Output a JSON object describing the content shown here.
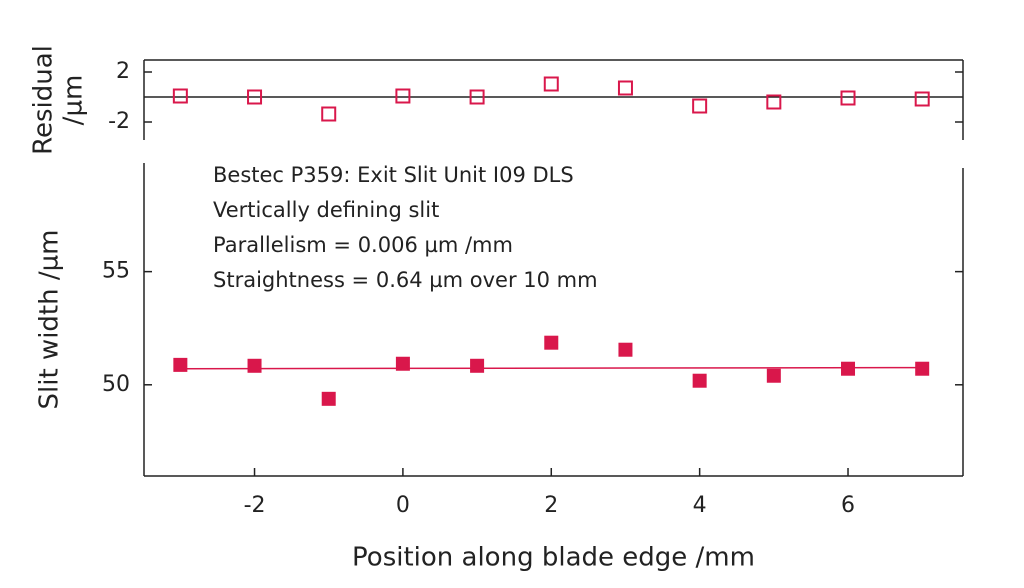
{
  "chart_data": [
    {
      "type": "scatter",
      "ylabel": [
        "Residual",
        "/µm"
      ],
      "x": [
        -3,
        -2,
        -1,
        0,
        1,
        2,
        3,
        4,
        5,
        6,
        7
      ],
      "values": [
        0.08,
        0,
        -1.36,
        0.08,
        0,
        1.04,
        0.72,
        -0.72,
        -0.4,
        -0.08,
        -0.16
      ],
      "color": "#d9174b",
      "marker": "open-square",
      "zero_line": true,
      "xlim": [
        -3.49,
        7.55
      ],
      "ylim": [
        -3.44,
        2.96
      ],
      "yticks": [
        -2,
        2
      ]
    },
    {
      "type": "scatter",
      "annotations": [
        "Bestec P359: Exit Slit Unit I09 DLS",
        "Vertically defining slit",
        "Parallelism = 0.006 µm /mm",
        "Straightness = 0.64 µm over 10 mm"
      ],
      "xlabel": "Position along blade edge /mm",
      "ylabel": "Slit width /µm",
      "x": [
        -3,
        -2,
        -1,
        0,
        1,
        2,
        3,
        4,
        5,
        6,
        7
      ],
      "values": [
        50.88,
        50.84,
        49.38,
        50.93,
        50.84,
        51.86,
        51.55,
        50.18,
        50.4,
        50.71,
        50.71
      ],
      "color": "#d9174b",
      "marker": "filled-square",
      "fit": {
        "x": [
          -3,
          7
        ],
        "values": [
          50.71,
          50.76
        ]
      },
      "xlim": [
        -3.49,
        7.55
      ],
      "ylim": [
        45.97,
        59.8
      ],
      "xticks": [
        -2,
        0,
        2,
        4,
        6
      ],
      "yticks": [
        50,
        55
      ]
    }
  ]
}
